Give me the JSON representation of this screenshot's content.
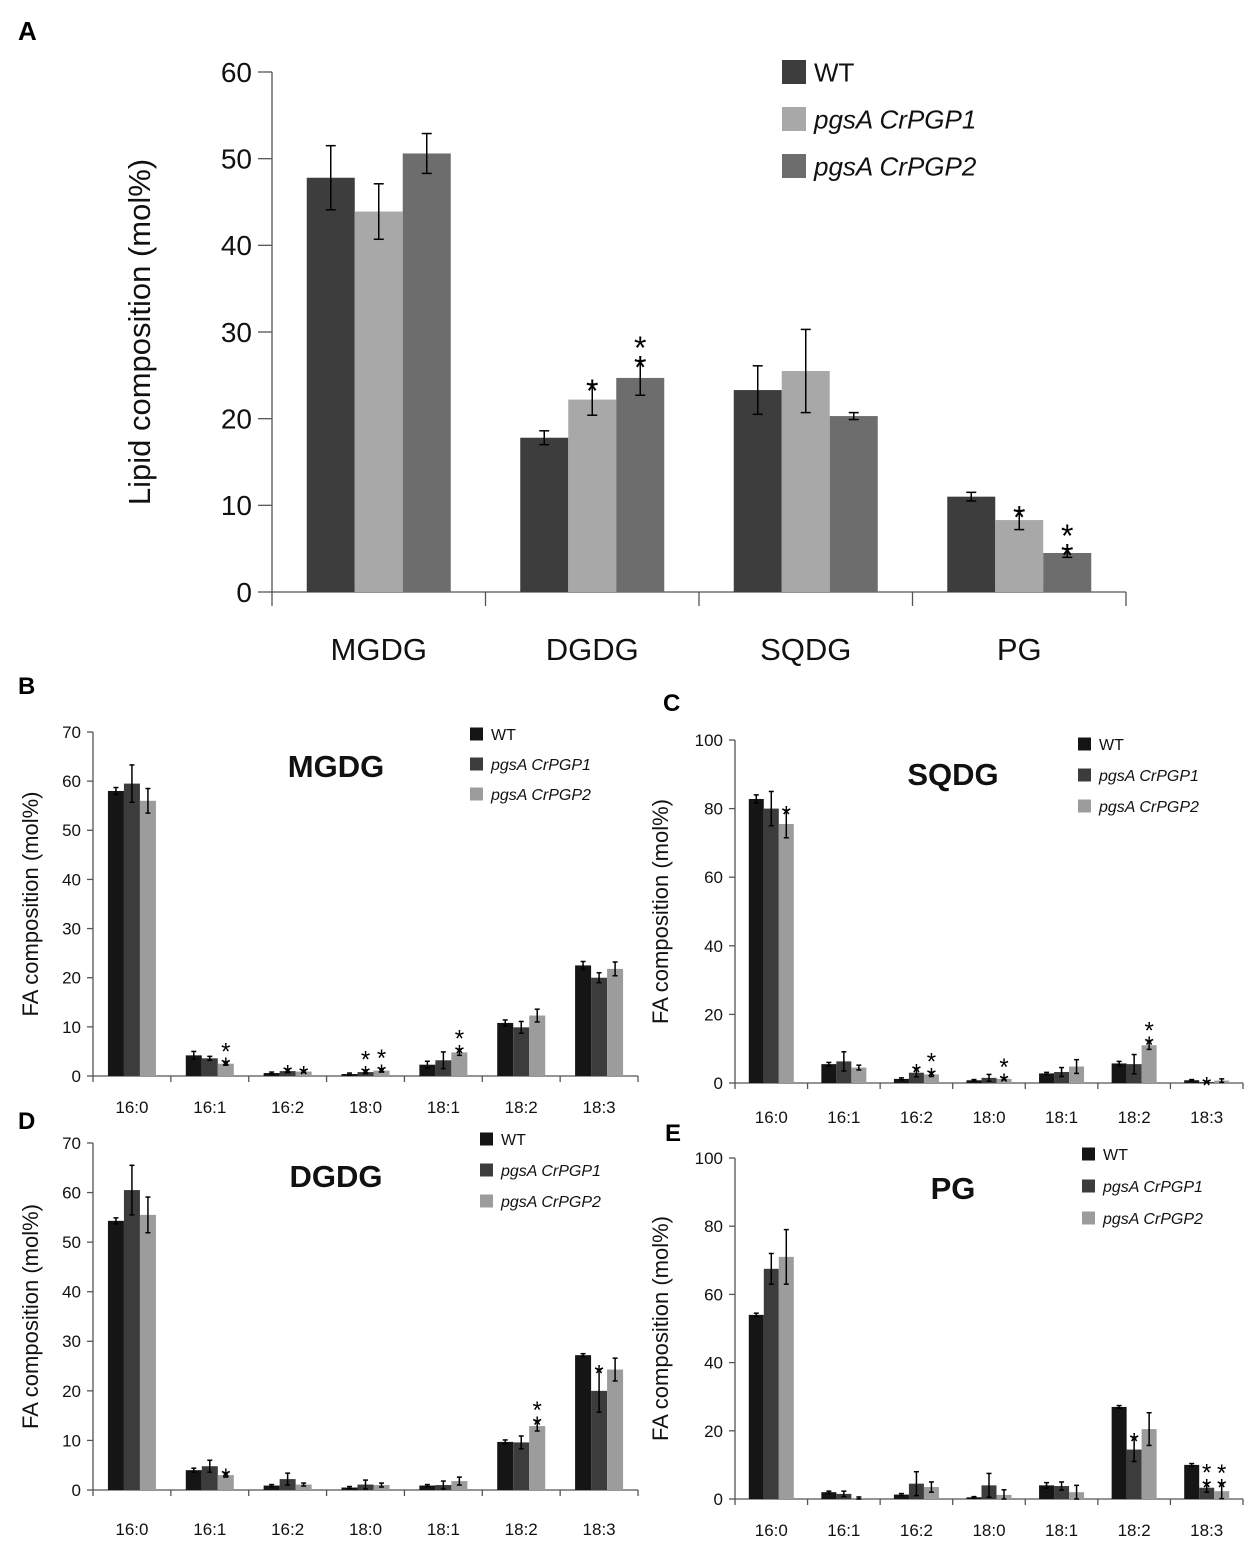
{
  "colors": {
    "wt": "#3d3d3d",
    "pgp1": "#a8a8a8",
    "pgp2": "#6d6d6d",
    "wt_small": "#151515",
    "pgp1_small": "#3c3c3c",
    "pgp2_small": "#9c9c9c"
  },
  "chart_data": [
    {
      "panel": "A",
      "type": "bar",
      "title": "",
      "ylabel": "Lipid composition (mol%)",
      "xlabel": "",
      "ylim": [
        0,
        60
      ],
      "yticks": [
        0,
        10,
        20,
        30,
        40,
        50,
        60
      ],
      "categories": [
        "MGDG",
        "DGDG",
        "SQDG",
        "PG"
      ],
      "series": [
        {
          "name": "WT",
          "values": [
            47.8,
            17.8,
            23.3,
            11.0
          ],
          "errors": [
            3.7,
            0.8,
            2.8,
            0.5
          ],
          "color_key": "wt"
        },
        {
          "name": "pgsA CrPGP1",
          "values": [
            43.9,
            22.2,
            25.5,
            8.3
          ],
          "errors": [
            3.2,
            1.8,
            4.8,
            1.1
          ],
          "color_key": "pgp1"
        },
        {
          "name": "pgsA CrPGP2",
          "values": [
            50.6,
            24.7,
            20.3,
            4.5
          ],
          "errors": [
            2.3,
            2.0,
            0.4,
            0.5
          ],
          "color_key": "pgp2"
        }
      ],
      "annotations": [
        {
          "category": 1,
          "series": 1,
          "text": "*"
        },
        {
          "category": 1,
          "series": 2,
          "text": "**"
        },
        {
          "category": 3,
          "series": 1,
          "text": "*"
        },
        {
          "category": 3,
          "series": 2,
          "text": "**"
        }
      ]
    },
    {
      "panel": "B",
      "type": "bar",
      "title": "MGDG",
      "ylabel": "FA composition (mol%)",
      "xlabel": "",
      "ylim": [
        0,
        70
      ],
      "yticks": [
        0,
        10,
        20,
        30,
        40,
        50,
        60,
        70
      ],
      "categories": [
        "16:0",
        "16:1",
        "16:2",
        "18:0",
        "18:1",
        "18:2",
        "18:3"
      ],
      "series": [
        {
          "name": "WT",
          "values": [
            58.0,
            4.2,
            0.6,
            0.4,
            2.3,
            10.8,
            22.5
          ],
          "errors": [
            0.7,
            0.8,
            0.2,
            0.2,
            0.7,
            0.6,
            0.8
          ],
          "color_key": "wt_small"
        },
        {
          "name": "pgsA CrPGP1",
          "values": [
            59.5,
            3.6,
            1.0,
            0.8,
            3.2,
            9.9,
            20.0
          ],
          "errors": [
            3.8,
            0.4,
            0.3,
            0.3,
            1.7,
            1.2,
            1.0
          ],
          "color_key": "pgp1_small"
        },
        {
          "name": "pgsA CrPGP2",
          "values": [
            56.0,
            2.5,
            0.9,
            1.1,
            4.8,
            12.3,
            21.8
          ],
          "errors": [
            2.5,
            0.3,
            0.2,
            0.3,
            0.6,
            1.3,
            1.4
          ],
          "color_key": "pgp2_small"
        }
      ],
      "annotations": [
        {
          "category": 1,
          "series": 2,
          "text": "**"
        },
        {
          "category": 2,
          "series": 1,
          "text": "*"
        },
        {
          "category": 2,
          "series": 2,
          "text": "*"
        },
        {
          "category": 3,
          "series": 1,
          "text": "**"
        },
        {
          "category": 3,
          "series": 2,
          "text": "**"
        },
        {
          "category": 4,
          "series": 2,
          "text": "**"
        }
      ]
    },
    {
      "panel": "C",
      "type": "bar",
      "title": "SQDG",
      "ylabel": "FA composition (mol%)",
      "xlabel": "",
      "ylim": [
        0,
        100
      ],
      "yticks": [
        0,
        20,
        40,
        60,
        80,
        100
      ],
      "categories": [
        "16:0",
        "16:1",
        "16:2",
        "18:0",
        "18:1",
        "18:2",
        "18:3"
      ],
      "series": [
        {
          "name": "WT",
          "values": [
            82.8,
            5.5,
            1.2,
            0.8,
            2.8,
            5.7,
            0.8
          ],
          "errors": [
            1.2,
            0.5,
            0.3,
            0.2,
            0.3,
            0.6,
            0.2
          ],
          "color_key": "wt_small"
        },
        {
          "name": "pgsA CrPGP1",
          "values": [
            80.0,
            6.3,
            3.0,
            1.5,
            3.2,
            5.5,
            0.3
          ],
          "errors": [
            5.0,
            2.8,
            1.2,
            1.0,
            1.3,
            2.8,
            0.2
          ],
          "color_key": "pgp1_small"
        },
        {
          "name": "pgsA CrPGP2",
          "values": [
            75.5,
            4.5,
            2.5,
            1.2,
            4.8,
            11.0,
            0.7
          ],
          "errors": [
            4.0,
            0.7,
            0.6,
            0.3,
            2.0,
            1.2,
            0.5
          ],
          "color_key": "pgp2_small"
        }
      ],
      "annotations": [
        {
          "category": 0,
          "series": 2,
          "text": "*"
        },
        {
          "category": 2,
          "series": 1,
          "text": "*"
        },
        {
          "category": 2,
          "series": 2,
          "text": "**"
        },
        {
          "category": 3,
          "series": 2,
          "text": "**"
        },
        {
          "category": 5,
          "series": 2,
          "text": "**"
        },
        {
          "category": 6,
          "series": 1,
          "text": "*"
        }
      ]
    },
    {
      "panel": "D",
      "type": "bar",
      "title": "DGDG",
      "ylabel": "FA composition (mol%)",
      "xlabel": "",
      "ylim": [
        0,
        70
      ],
      "yticks": [
        0,
        10,
        20,
        30,
        40,
        50,
        60,
        70
      ],
      "categories": [
        "16:0",
        "16:1",
        "16:2",
        "18:0",
        "18:1",
        "18:2",
        "18:3"
      ],
      "series": [
        {
          "name": "WT",
          "values": [
            54.3,
            4.0,
            0.9,
            0.5,
            0.9,
            9.7,
            27.2
          ],
          "errors": [
            0.6,
            0.4,
            0.2,
            0.2,
            0.2,
            0.4,
            0.3
          ],
          "color_key": "wt_small"
        },
        {
          "name": "pgsA CrPGP1",
          "values": [
            60.5,
            4.8,
            2.2,
            1.1,
            1.0,
            9.6,
            20.0
          ],
          "errors": [
            5.0,
            1.2,
            1.2,
            0.9,
            0.8,
            1.3,
            4.3
          ],
          "color_key": "pgp1_small"
        },
        {
          "name": "pgsA CrPGP2",
          "values": [
            55.5,
            3.0,
            1.1,
            1.0,
            1.8,
            12.9,
            24.3
          ],
          "errors": [
            3.6,
            0.4,
            0.3,
            0.4,
            0.8,
            1.0,
            2.3
          ],
          "color_key": "pgp2_small"
        }
      ],
      "annotations": [
        {
          "category": 1,
          "series": 2,
          "text": "*"
        },
        {
          "category": 5,
          "series": 2,
          "text": "**"
        },
        {
          "category": 6,
          "series": 1,
          "text": "*"
        }
      ]
    },
    {
      "panel": "E",
      "type": "bar",
      "title": "PG",
      "ylabel": "FA composition (mol%)",
      "xlabel": "",
      "ylim": [
        0,
        100
      ],
      "yticks": [
        0,
        20,
        40,
        60,
        80,
        100
      ],
      "categories": [
        "16:0",
        "16:1",
        "16:2",
        "18:0",
        "18:1",
        "18:2",
        "18:3"
      ],
      "series": [
        {
          "name": "WT",
          "values": [
            54.0,
            2.0,
            1.3,
            0.5,
            4.0,
            27.0,
            10.0
          ],
          "errors": [
            0.5,
            0.3,
            0.3,
            0.2,
            0.8,
            0.4,
            0.4
          ],
          "color_key": "wt_small"
        },
        {
          "name": "pgsA CrPGP1",
          "values": [
            67.5,
            1.5,
            4.5,
            4.0,
            3.8,
            14.5,
            3.3
          ],
          "errors": [
            4.5,
            0.8,
            3.5,
            3.5,
            1.2,
            3.5,
            1.3
          ],
          "color_key": "pgp1_small"
        },
        {
          "name": "pgsA CrPGP2",
          "values": [
            71.0,
            0.3,
            3.5,
            1.2,
            2.0,
            20.5,
            2.3
          ],
          "errors": [
            8.0,
            0.3,
            1.5,
            1.5,
            2.0,
            4.8,
            2.2
          ],
          "color_key": "pgp2_small"
        }
      ],
      "annotations": [
        {
          "category": 5,
          "series": 1,
          "text": "*"
        },
        {
          "category": 6,
          "series": 1,
          "text": "**"
        },
        {
          "category": 6,
          "series": 2,
          "text": "**"
        }
      ]
    }
  ]
}
